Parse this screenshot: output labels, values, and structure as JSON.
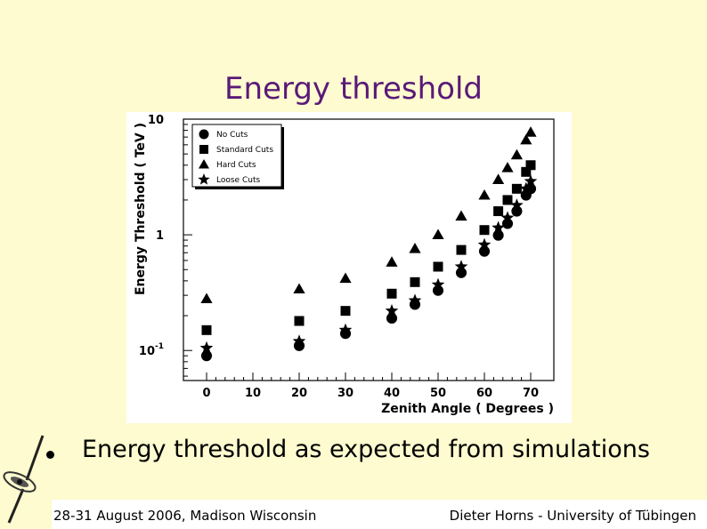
{
  "slide": {
    "title": "Energy threshold",
    "bullet": "Energy threshold as expected from simulations",
    "footer_left": "28-31 August 2006, Madison Wisconsin",
    "footer_right": "Dieter Horns - University of Tübingen"
  },
  "colors": {
    "background": "#fdfbcf",
    "title": "#5a1a78",
    "footer": "#ffffff"
  },
  "icons": {
    "logo": "galaxy-logo-icon"
  },
  "chart_data": {
    "type": "scatter",
    "xlabel": "Zenith Angle ( Degrees )",
    "ylabel": "Energy Threshold ( TeV )",
    "xlim": [
      -5,
      75
    ],
    "ylim": [
      0.055,
      10
    ],
    "yscale": "log",
    "xticks": [
      0,
      10,
      20,
      30,
      40,
      50,
      60,
      70
    ],
    "yticks": [
      {
        "value": 0.1,
        "base": "10",
        "exp": "-1"
      },
      {
        "value": 1,
        "base": "1",
        "exp": ""
      },
      {
        "value": 10,
        "base": "10",
        "exp": ""
      }
    ],
    "grid": false,
    "legend_position": "top-left",
    "series": [
      {
        "name": "No Cuts",
        "marker": "circle",
        "x": [
          0,
          20,
          30,
          40,
          45,
          50,
          55,
          60,
          63,
          65,
          67,
          69,
          70
        ],
        "y": [
          0.09,
          0.11,
          0.14,
          0.19,
          0.25,
          0.33,
          0.47,
          0.72,
          0.99,
          1.25,
          1.6,
          2.2,
          2.5
        ]
      },
      {
        "name": "Standard Cuts",
        "marker": "square",
        "x": [
          0,
          20,
          30,
          40,
          45,
          50,
          55,
          60,
          63,
          65,
          67,
          69,
          70
        ],
        "y": [
          0.15,
          0.18,
          0.22,
          0.31,
          0.39,
          0.53,
          0.74,
          1.1,
          1.6,
          2.0,
          2.5,
          3.5,
          4.0
        ]
      },
      {
        "name": "Hard Cuts",
        "marker": "triangle",
        "x": [
          0,
          20,
          30,
          40,
          45,
          50,
          55,
          60,
          63,
          65,
          67,
          69,
          70
        ],
        "y": [
          0.28,
          0.34,
          0.42,
          0.58,
          0.76,
          1.0,
          1.45,
          2.2,
          3.0,
          3.8,
          4.9,
          6.6,
          7.7
        ]
      },
      {
        "name": "Loose Cuts",
        "marker": "star",
        "x": [
          0,
          20,
          30,
          40,
          45,
          50,
          55,
          60,
          63,
          65,
          67,
          69,
          70
        ],
        "y": [
          0.105,
          0.12,
          0.15,
          0.22,
          0.27,
          0.37,
          0.53,
          0.82,
          1.15,
          1.4,
          1.8,
          2.5,
          2.9
        ]
      }
    ]
  }
}
